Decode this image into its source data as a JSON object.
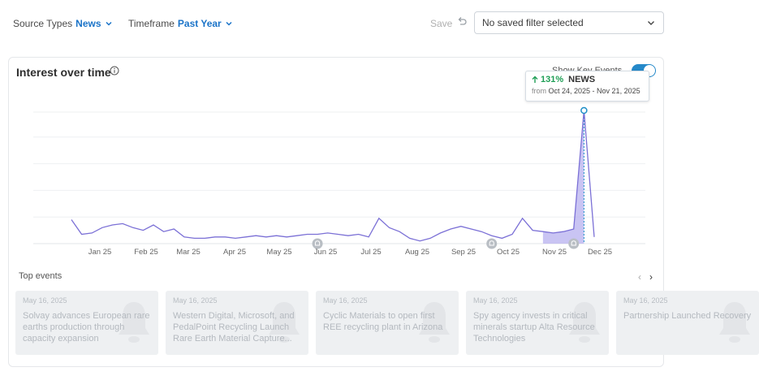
{
  "filters": {
    "source_types_label": "Source Types",
    "source_types_value": "News",
    "timeframe_label": "Timeframe",
    "timeframe_value": "Past Year"
  },
  "toolbar": {
    "save_label": "Save",
    "saved_filter_value": "No saved filter selected"
  },
  "card": {
    "title": "Interest over time",
    "key_events_label": "Show Key Events",
    "key_events_on": true
  },
  "tooltip": {
    "pct": "131%",
    "source": "NEWS",
    "from_label": "from",
    "range": "Oct 24, 2025 - Nov 21, 2025"
  },
  "chart_data": {
    "type": "area",
    "x_tick_labels": [
      "Jan 25",
      "Feb 25",
      "Mar 25",
      "Apr 25",
      "May 25",
      "Jun 25",
      "Jul 25",
      "Aug 25",
      "Sep 25",
      "Oct 25",
      "Nov 25",
      "Dec 25"
    ],
    "series": [
      {
        "values": [
          18,
          7,
          8,
          12,
          14,
          15,
          12,
          10,
          14,
          9,
          11,
          5,
          4,
          4,
          5,
          5,
          4,
          5,
          6,
          5,
          6,
          5,
          6,
          7,
          7,
          8,
          7,
          6,
          7,
          5,
          19,
          12,
          9,
          4,
          2,
          4,
          8,
          11,
          13,
          11,
          9,
          6,
          4,
          7,
          19,
          10,
          9,
          8,
          9,
          11,
          100,
          5
        ]
      }
    ],
    "highlight_range": [
      46,
      50
    ],
    "key_event_markers": [
      24,
      41,
      49
    ],
    "colors": {
      "line": "#7b70d6",
      "fill": "#b7b0ef",
      "marker": "#1e8fc7"
    },
    "grid": true
  },
  "top_events": {
    "label": "Top events",
    "items": [
      {
        "date": "May 16, 2025",
        "title": "Solvay advances European rare earths production through capacity expansion"
      },
      {
        "date": "May 16, 2025",
        "title": "Western Digital, Microsoft, and PedalPoint Recycling Launch Rare Earth Material Capture..."
      },
      {
        "date": "May 16, 2025",
        "title": "Cyclic Materials to open first REE recycling plant in Arizona"
      },
      {
        "date": "May 16, 2025",
        "title": "Spy agency invests in critical minerals startup Alta Resource Technologies"
      },
      {
        "date": "May 16, 2025",
        "title": "Partnership Launched Recovery"
      }
    ]
  }
}
